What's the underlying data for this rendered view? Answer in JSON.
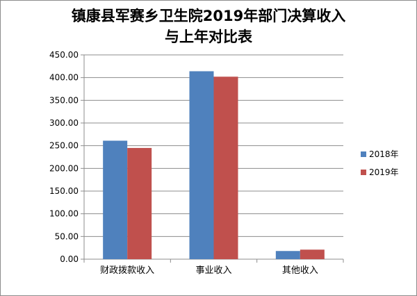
{
  "chart_data": {
    "type": "bar",
    "title_line1": "镇康县军赛乡卫生院2019年部门决算收入",
    "title_line2": "与上年对比表",
    "categories": [
      "财政拨款收入",
      "事业收入",
      "其他收入"
    ],
    "series": [
      {
        "name": "2018年",
        "values": [
          261,
          414,
          18
        ],
        "color": "#4f81bd"
      },
      {
        "name": "2019年",
        "values": [
          245,
          402,
          21
        ],
        "color": "#c0504d"
      }
    ],
    "ylim": [
      0,
      450
    ],
    "yticks": [
      "0.00",
      "50.00",
      "100.00",
      "150.00",
      "200.00",
      "250.00",
      "300.00",
      "350.00",
      "400.00",
      "450.00"
    ],
    "grid": true,
    "legend_position": "right"
  }
}
